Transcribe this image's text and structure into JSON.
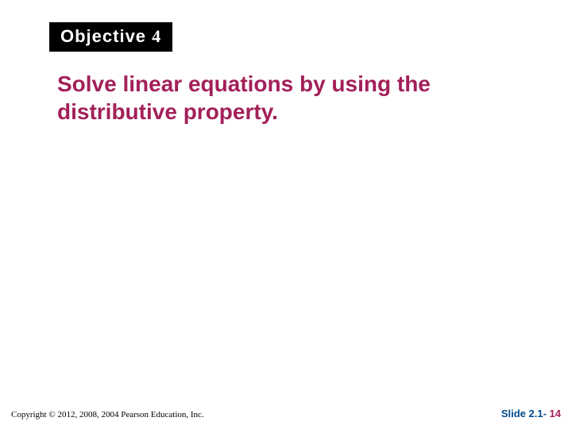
{
  "colors": {
    "badge_bg": "#000000",
    "badge_text": "#ffffff",
    "headline": "#a32059",
    "footer_left": "#000000",
    "slide_label": "#004b8d",
    "slide_number": "#a32059",
    "background": "#ffffff"
  },
  "typography": {
    "badge_fontsize": 22,
    "headline_fontsize": 28,
    "footer_left_fontsize": 11,
    "footer_right_fontsize": 13
  },
  "badge": {
    "label": "Objective ",
    "number": "4"
  },
  "headline": "Solve linear equations by using the distributive property.",
  "footer": {
    "copyright": "Copyright © 2012, 2008, 2004  Pearson Education, Inc.",
    "slide_label": "Slide 2.1- ",
    "slide_number": "14"
  }
}
